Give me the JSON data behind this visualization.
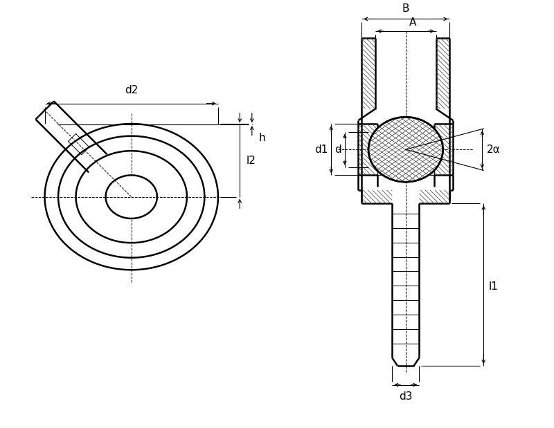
{
  "bg_color": "#ffffff",
  "line_color": "#000000",
  "fig_width": 8.0,
  "fig_height": 6.19,
  "dpi": 100,
  "labels": {
    "d2": "d2",
    "h": "h",
    "l2": "l2",
    "B": "B",
    "A": "A",
    "d1": "d1",
    "d": "d",
    "l1": "l1",
    "d3": "d3",
    "alpha": "2α"
  }
}
